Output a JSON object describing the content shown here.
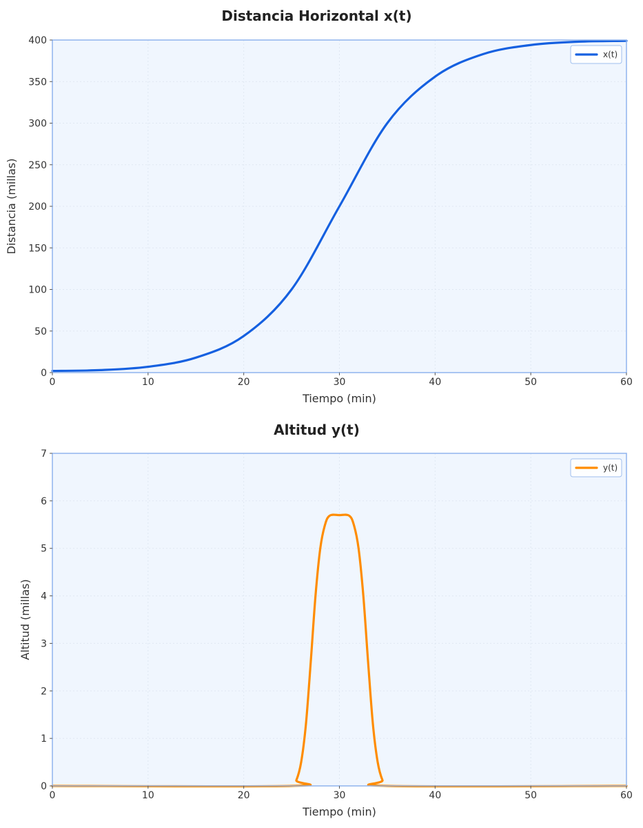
{
  "chart_data": [
    {
      "type": "line",
      "title": "Distancia Horizontal x(t)",
      "xlabel": "Tiempo (min)",
      "ylabel": "Distancia (millas)",
      "xlim": [
        0,
        60
      ],
      "ylim": [
        0,
        400
      ],
      "xticks": [
        "0",
        "10",
        "20",
        "30",
        "40",
        "50",
        "60"
      ],
      "yticks": [
        "0",
        "50",
        "100",
        "150",
        "200",
        "250",
        "300",
        "350",
        "400"
      ],
      "grid": true,
      "legend_position": "top-right",
      "series": [
        {
          "name": "x(t)",
          "color": "#1560e0",
          "x": [
            0,
            5,
            10,
            15,
            20,
            25,
            30,
            35,
            40,
            45,
            50,
            55,
            60
          ],
          "y": [
            2,
            3,
            7,
            18,
            44,
            100,
            200,
            300,
            356,
            383,
            394,
            398,
            399
          ]
        }
      ]
    },
    {
      "type": "line",
      "title": "Altitud y(t)",
      "xlabel": "Tiempo (min)",
      "ylabel": "Altitud (millas)",
      "xlim": [
        0,
        60
      ],
      "ylim": [
        0,
        7
      ],
      "xticks": [
        "0",
        "10",
        "20",
        "30",
        "40",
        "50",
        "60"
      ],
      "yticks": [
        "0",
        "1",
        "2",
        "3",
        "4",
        "5",
        "6",
        "7"
      ],
      "grid": true,
      "legend_position": "top-right",
      "series": [
        {
          "name": "y(t)",
          "color": "#ff8c00",
          "x": [
            0,
            25,
            25.5,
            26,
            26.5,
            27,
            27.5,
            28,
            28.5,
            29,
            30,
            31,
            31.5,
            32,
            32.5,
            33,
            33.5,
            34,
            34.5,
            35,
            60
          ],
          "y": [
            0,
            0,
            0.12,
            0.5,
            1.3,
            2.6,
            4.0,
            5.0,
            5.5,
            5.69,
            5.7,
            5.69,
            5.5,
            5.0,
            4.0,
            2.6,
            1.3,
            0.5,
            0.12,
            0,
            0
          ]
        }
      ]
    }
  ]
}
